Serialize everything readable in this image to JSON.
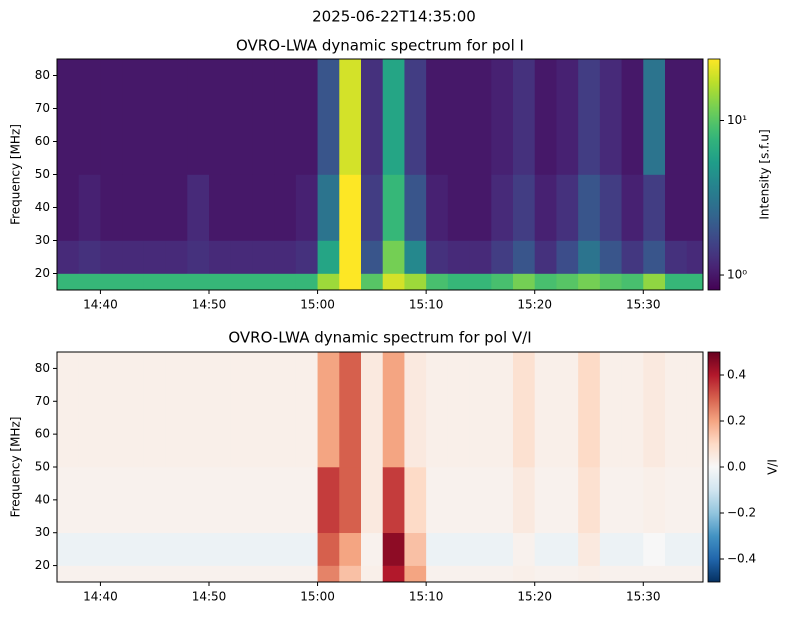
{
  "suptitle": "2025-06-22T14:35:00",
  "chart_data": [
    {
      "type": "heatmap",
      "title": "OVRO-LWA dynamic spectrum for pol I",
      "ylabel": "Frequency [MHz]",
      "colorbar_label": "Intensity [s.f.u]",
      "colormap": "viridis",
      "color_scale": "log",
      "xlim": [
        36,
        95.5
      ],
      "ylim": [
        15,
        85
      ],
      "xticks": [
        {
          "value": 40,
          "label": "14:40"
        },
        {
          "value": 50,
          "label": "14:50"
        },
        {
          "value": 60,
          "label": "15:00"
        },
        {
          "value": 70,
          "label": "15:10"
        },
        {
          "value": 80,
          "label": "15:20"
        },
        {
          "value": 90,
          "label": "15:30"
        }
      ],
      "yticks": [
        20,
        30,
        40,
        50,
        60,
        70,
        80
      ],
      "clim": [
        0.8,
        25
      ],
      "cticks": [
        {
          "value": 1,
          "label": "10⁰"
        },
        {
          "value": 10,
          "label": "10¹"
        }
      ],
      "x_bins": [
        36,
        38,
        40,
        42,
        44,
        46,
        48,
        50,
        52,
        54,
        56,
        58,
        60,
        62,
        64,
        66,
        68,
        70,
        72,
        74,
        76,
        78,
        80,
        82,
        84,
        86,
        88,
        90,
        92,
        94,
        96
      ],
      "y_bins": [
        15,
        20,
        30,
        50,
        85
      ],
      "values": [
        [
          8,
          1.2,
          1,
          1
        ],
        [
          8,
          1.3,
          1.1,
          1
        ],
        [
          8,
          1.2,
          1,
          1
        ],
        [
          8,
          1.2,
          1,
          1
        ],
        [
          8,
          1.2,
          1,
          1
        ],
        [
          8,
          1.2,
          1,
          1
        ],
        [
          8,
          1.3,
          1.2,
          1
        ],
        [
          8,
          1.2,
          1,
          1
        ],
        [
          8,
          1.2,
          1,
          1
        ],
        [
          8,
          1.2,
          1,
          1
        ],
        [
          8,
          1.2,
          1,
          1
        ],
        [
          8,
          1.3,
          1.1,
          1
        ],
        [
          15,
          6,
          3,
          2
        ],
        [
          25,
          25,
          25,
          20
        ],
        [
          10,
          2,
          1.5,
          1.3
        ],
        [
          20,
          12,
          8,
          6
        ],
        [
          15,
          4,
          2,
          1.5
        ],
        [
          9,
          1.3,
          1.1,
          1
        ],
        [
          8,
          1.2,
          1,
          1
        ],
        [
          8,
          1.2,
          1,
          1
        ],
        [
          9,
          1.5,
          1.2,
          1.1
        ],
        [
          12,
          2,
          1.5,
          1.3
        ],
        [
          9,
          1.3,
          1.1,
          1
        ],
        [
          10,
          1.8,
          1.3,
          1.1
        ],
        [
          12,
          3,
          2,
          1.5
        ],
        [
          10,
          2,
          1.5,
          1.2
        ],
        [
          9,
          1.4,
          1.1,
          1
        ],
        [
          14,
          2,
          1.5,
          3
        ],
        [
          8,
          1.3,
          1,
          1
        ],
        [
          8,
          1.2,
          1,
          1
        ]
      ]
    },
    {
      "type": "heatmap",
      "title": "OVRO-LWA dynamic spectrum for pol V/I",
      "ylabel": "Frequency [MHz]",
      "colorbar_label": "V/I",
      "colormap": "RdBu_r",
      "color_scale": "linear",
      "xlim": [
        36,
        95.5
      ],
      "ylim": [
        15,
        85
      ],
      "xticks": [
        {
          "value": 40,
          "label": "14:40"
        },
        {
          "value": 50,
          "label": "14:50"
        },
        {
          "value": 60,
          "label": "15:00"
        },
        {
          "value": 70,
          "label": "15:10"
        },
        {
          "value": 80,
          "label": "15:20"
        },
        {
          "value": 90,
          "label": "15:30"
        }
      ],
      "yticks": [
        20,
        30,
        40,
        50,
        60,
        70,
        80
      ],
      "clim": [
        -0.5,
        0.5
      ],
      "cticks": [
        {
          "value": -0.4,
          "label": "−0.4"
        },
        {
          "value": -0.2,
          "label": "−0.2"
        },
        {
          "value": 0,
          "label": "0.0"
        },
        0.2,
        0.4
      ],
      "x_bins": [
        36,
        38,
        40,
        42,
        44,
        46,
        48,
        50,
        52,
        54,
        56,
        58,
        60,
        62,
        64,
        66,
        68,
        70,
        72,
        74,
        76,
        78,
        80,
        82,
        84,
        86,
        88,
        90,
        92,
        94,
        96
      ],
      "y_bins": [
        15,
        20,
        30,
        50,
        85
      ],
      "values": [
        [
          0.02,
          -0.03,
          0.02,
          0.03
        ],
        [
          0.02,
          -0.03,
          0.02,
          0.03
        ],
        [
          0.02,
          -0.03,
          0.02,
          0.03
        ],
        [
          0.02,
          -0.03,
          0.02,
          0.03
        ],
        [
          0.02,
          -0.03,
          0.02,
          0.03
        ],
        [
          0.02,
          -0.03,
          0.02,
          0.03
        ],
        [
          0.02,
          -0.03,
          0.02,
          0.03
        ],
        [
          0.02,
          -0.03,
          0.02,
          0.03
        ],
        [
          0.02,
          -0.03,
          0.02,
          0.03
        ],
        [
          0.02,
          -0.03,
          0.02,
          0.03
        ],
        [
          0.02,
          -0.03,
          0.02,
          0.03
        ],
        [
          0.02,
          -0.03,
          0.02,
          0.03
        ],
        [
          0.25,
          0.3,
          0.35,
          0.2
        ],
        [
          0.15,
          0.2,
          0.3,
          0.3
        ],
        [
          0.03,
          0.02,
          0.05,
          0.05
        ],
        [
          0.4,
          0.45,
          0.35,
          0.2
        ],
        [
          0.2,
          0.15,
          0.1,
          0.05
        ],
        [
          0.02,
          -0.03,
          0.02,
          0.03
        ],
        [
          0.02,
          -0.03,
          0.02,
          0.03
        ],
        [
          0.02,
          -0.03,
          0.02,
          0.03
        ],
        [
          0.02,
          -0.03,
          0.02,
          0.03
        ],
        [
          0.03,
          0.02,
          0.05,
          0.08
        ],
        [
          0.02,
          -0.03,
          0.02,
          0.03
        ],
        [
          0.02,
          -0.03,
          0.02,
          0.03
        ],
        [
          0.03,
          0.05,
          0.08,
          0.1
        ],
        [
          0.02,
          -0.03,
          0.02,
          0.03
        ],
        [
          0.02,
          -0.03,
          0.02,
          0.03
        ],
        [
          0.02,
          0.0,
          0.03,
          0.05
        ],
        [
          0.02,
          -0.03,
          0.02,
          0.03
        ],
        [
          0.02,
          -0.03,
          0.02,
          0.03
        ]
      ]
    }
  ]
}
